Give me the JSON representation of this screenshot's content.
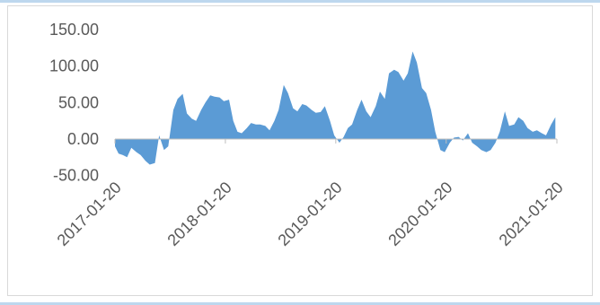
{
  "chart_data": {
    "type": "area",
    "title": "",
    "xlabel": "",
    "ylabel": "",
    "ylim": [
      -62.5,
      162.5
    ],
    "yticks": [
      "150.00",
      "100.00",
      "50.00",
      "0.00",
      "-50.00"
    ],
    "ytick_values": [
      150,
      100,
      50,
      0,
      -50
    ],
    "xticks": [
      "2017-01-20",
      "2018-01-20",
      "2019-01-20",
      "2020-01-20",
      "2021-01-20"
    ],
    "xlim": [
      "2017-01-20",
      "2021-01-20"
    ],
    "grid": false,
    "legend": "none",
    "series": [
      {
        "color": "#5b9bd5",
        "x": [
          "2017-01-20",
          "2017-02-01",
          "2017-02-15",
          "2017-03-01",
          "2017-03-15",
          "2017-04-01",
          "2017-04-15",
          "2017-05-01",
          "2017-05-15",
          "2017-06-01",
          "2017-06-15",
          "2017-07-01",
          "2017-07-15",
          "2017-08-01",
          "2017-08-15",
          "2017-09-01",
          "2017-09-15",
          "2017-10-01",
          "2017-10-15",
          "2017-11-01",
          "2017-11-15",
          "2017-12-01",
          "2017-12-15",
          "2018-01-01",
          "2018-01-15",
          "2018-02-01",
          "2018-02-15",
          "2018-03-01",
          "2018-03-15",
          "2018-04-01",
          "2018-04-15",
          "2018-05-01",
          "2018-05-15",
          "2018-06-01",
          "2018-06-15",
          "2018-07-01",
          "2018-07-15",
          "2018-08-01",
          "2018-08-15",
          "2018-09-01",
          "2018-09-15",
          "2018-10-01",
          "2018-10-15",
          "2018-11-01",
          "2018-11-15",
          "2018-12-01",
          "2018-12-15",
          "2019-01-01",
          "2019-01-15",
          "2019-02-01",
          "2019-02-15",
          "2019-03-01",
          "2019-03-15",
          "2019-04-01",
          "2019-04-15",
          "2019-05-01",
          "2019-05-15",
          "2019-06-01",
          "2019-06-15",
          "2019-07-01",
          "2019-07-15",
          "2019-08-01",
          "2019-08-15",
          "2019-09-01",
          "2019-09-15",
          "2019-10-01",
          "2019-10-15",
          "2019-11-01",
          "2019-11-15",
          "2019-12-01",
          "2019-12-15",
          "2020-01-01",
          "2020-01-15",
          "2020-02-01",
          "2020-02-15",
          "2020-03-01",
          "2020-03-15",
          "2020-04-01",
          "2020-04-15",
          "2020-05-01",
          "2020-05-15",
          "2020-06-01",
          "2020-06-15",
          "2020-07-01",
          "2020-07-15",
          "2020-08-01",
          "2020-08-15",
          "2020-09-01",
          "2020-09-15",
          "2020-10-01",
          "2020-10-15",
          "2020-11-01",
          "2020-11-15",
          "2020-12-01",
          "2020-12-15",
          "2021-01-01",
          "2021-01-15"
        ],
        "values": [
          -10,
          -20,
          -22,
          -25,
          -12,
          -18,
          -22,
          -30,
          -35,
          -33,
          5,
          -15,
          -10,
          40,
          55,
          62,
          35,
          28,
          25,
          40,
          50,
          60,
          58,
          57,
          52,
          54,
          25,
          10,
          8,
          15,
          22,
          20,
          20,
          18,
          12,
          25,
          40,
          74,
          63,
          42,
          38,
          48,
          46,
          40,
          36,
          37,
          45,
          25,
          5,
          -5,
          3,
          15,
          20,
          40,
          54,
          38,
          30,
          45,
          65,
          55,
          90,
          95,
          92,
          80,
          90,
          120,
          105,
          70,
          63,
          40,
          10,
          -15,
          -18,
          -5,
          2,
          3,
          -2,
          8,
          -5,
          -10,
          -15,
          -18,
          -15,
          -5,
          10,
          38,
          18,
          20,
          30,
          25,
          15,
          10,
          12,
          8,
          5,
          20,
          30
        ]
      }
    ]
  }
}
